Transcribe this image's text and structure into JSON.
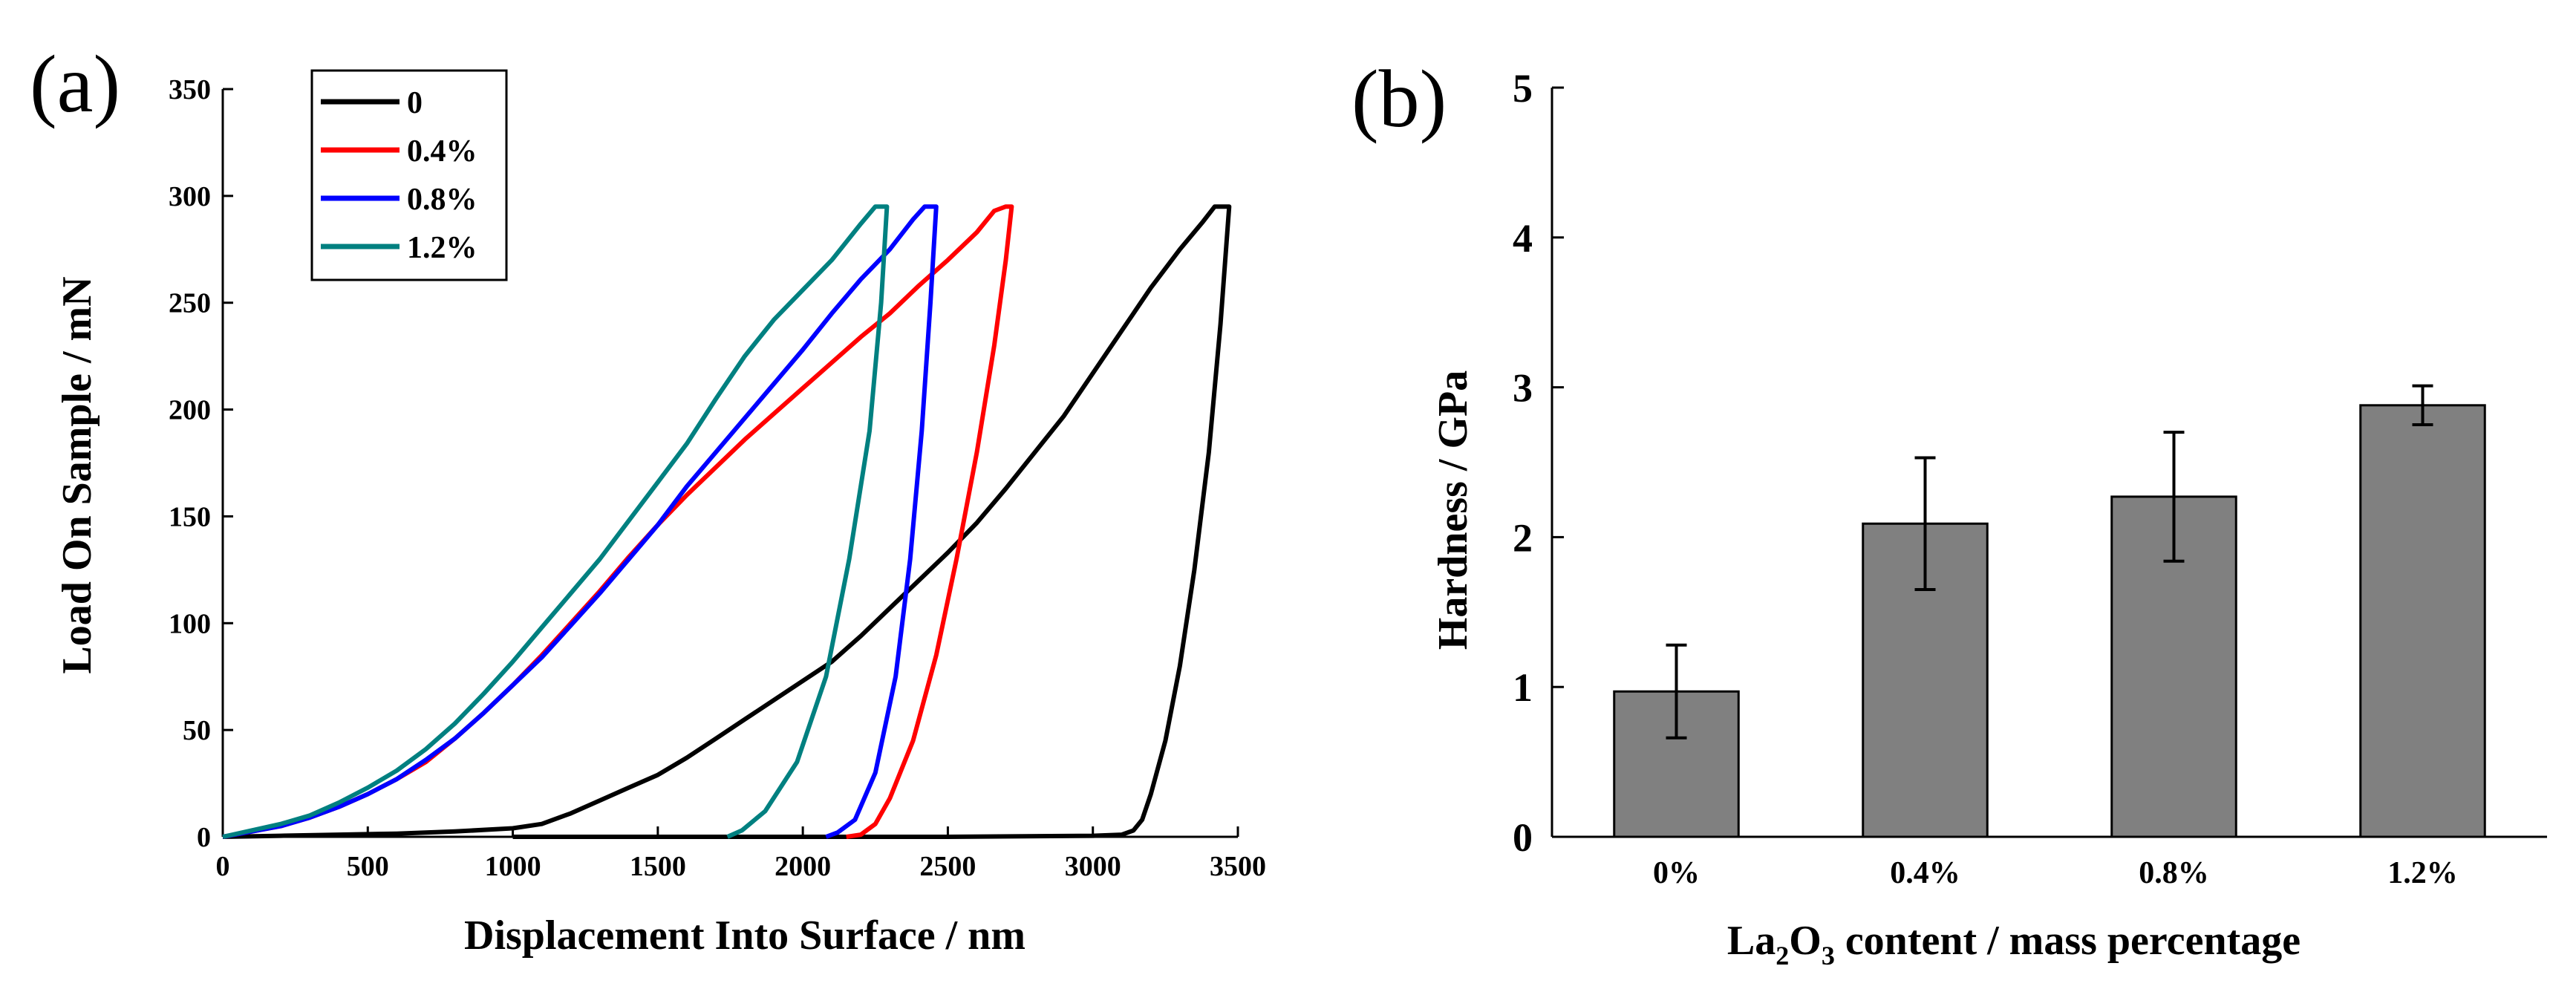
{
  "panels": {
    "a_label": "(a)",
    "b_label": "(b)"
  },
  "chart_data": [
    {
      "type": "line",
      "xlabel": "Displacement Into Surface / nm",
      "ylabel": "Load On Sample / mN",
      "xlim": [
        0,
        3500
      ],
      "ylim": [
        0,
        350
      ],
      "xticks": [
        0,
        500,
        1000,
        1500,
        2000,
        2500,
        3000,
        3500
      ],
      "yticks": [
        0,
        50,
        100,
        150,
        200,
        250,
        300,
        350
      ],
      "grid": false,
      "legend_position": "top-left",
      "series": [
        {
          "name": "0",
          "color": "#000000",
          "points": [
            [
              0,
              0
            ],
            [
              200,
              0.5
            ],
            [
              400,
              1
            ],
            [
              600,
              1.5
            ],
            [
              800,
              2.5
            ],
            [
              1000,
              4
            ],
            [
              1100,
              6
            ],
            [
              1200,
              11
            ],
            [
              1300,
              17
            ],
            [
              1400,
              23
            ],
            [
              1500,
              29
            ],
            [
              1600,
              37
            ],
            [
              1700,
              46
            ],
            [
              1800,
              55
            ],
            [
              1900,
              64
            ],
            [
              2000,
              73
            ],
            [
              2100,
              82
            ],
            [
              2200,
              94
            ],
            [
              2300,
              107
            ],
            [
              2400,
              120
            ],
            [
              2500,
              133
            ],
            [
              2600,
              147
            ],
            [
              2700,
              163
            ],
            [
              2800,
              180
            ],
            [
              2900,
              197
            ],
            [
              3000,
              217
            ],
            [
              3100,
              237
            ],
            [
              3200,
              257
            ],
            [
              3300,
              275
            ],
            [
              3380,
              288
            ],
            [
              3420,
              295
            ],
            [
              3470,
              295
            ],
            [
              3440,
              240
            ],
            [
              3400,
              180
            ],
            [
              3350,
              125
            ],
            [
              3300,
              80
            ],
            [
              3250,
              45
            ],
            [
              3200,
              20
            ],
            [
              3170,
              8
            ],
            [
              3140,
              3
            ],
            [
              3100,
              1
            ],
            [
              3000,
              0.5
            ],
            [
              2500,
              0
            ],
            [
              2000,
              0
            ],
            [
              1500,
              0
            ],
            [
              1000,
              0
            ]
          ]
        },
        {
          "name": "0.4%",
          "color": "#ff0000",
          "points": [
            [
              0,
              0
            ],
            [
              200,
              5
            ],
            [
              300,
              9
            ],
            [
              400,
              14
            ],
            [
              500,
              20
            ],
            [
              600,
              27
            ],
            [
              700,
              35
            ],
            [
              800,
              46
            ],
            [
              900,
              58
            ],
            [
              1000,
              71
            ],
            [
              1100,
              85
            ],
            [
              1200,
              100
            ],
            [
              1300,
              115
            ],
            [
              1400,
              131
            ],
            [
              1500,
              146
            ],
            [
              1600,
              160
            ],
            [
              1700,
              173
            ],
            [
              1800,
              186
            ],
            [
              1900,
              198
            ],
            [
              2000,
              210
            ],
            [
              2100,
              222
            ],
            [
              2200,
              234
            ],
            [
              2300,
              245
            ],
            [
              2400,
              258
            ],
            [
              2500,
              270
            ],
            [
              2600,
              283
            ],
            [
              2660,
              293
            ],
            [
              2700,
              295
            ],
            [
              2720,
              295
            ],
            [
              2700,
              270
            ],
            [
              2660,
              230
            ],
            [
              2600,
              180
            ],
            [
              2530,
              130
            ],
            [
              2460,
              85
            ],
            [
              2380,
              45
            ],
            [
              2300,
              18
            ],
            [
              2250,
              6
            ],
            [
              2200,
              1
            ],
            [
              2150,
              0
            ]
          ]
        },
        {
          "name": "0.8%",
          "color": "#0000ff",
          "points": [
            [
              0,
              0
            ],
            [
              200,
              5
            ],
            [
              300,
              9
            ],
            [
              400,
              14
            ],
            [
              500,
              20
            ],
            [
              600,
              27
            ],
            [
              700,
              36
            ],
            [
              800,
              46
            ],
            [
              900,
              58
            ],
            [
              1000,
              71
            ],
            [
              1100,
              84
            ],
            [
              1200,
              99
            ],
            [
              1300,
              114
            ],
            [
              1400,
              130
            ],
            [
              1500,
              146
            ],
            [
              1600,
              164
            ],
            [
              1700,
              180
            ],
            [
              1800,
              196
            ],
            [
              1900,
              212
            ],
            [
              2000,
              228
            ],
            [
              2100,
              245
            ],
            [
              2200,
              261
            ],
            [
              2300,
              275
            ],
            [
              2380,
              289
            ],
            [
              2420,
              295
            ],
            [
              2460,
              295
            ],
            [
              2440,
              250
            ],
            [
              2410,
              190
            ],
            [
              2370,
              130
            ],
            [
              2320,
              75
            ],
            [
              2250,
              30
            ],
            [
              2180,
              8
            ],
            [
              2120,
              2
            ],
            [
              2080,
              0
            ]
          ]
        },
        {
          "name": "1.2%",
          "color": "#008080",
          "points": [
            [
              0,
              0
            ],
            [
              200,
              6
            ],
            [
              300,
              10
            ],
            [
              400,
              16
            ],
            [
              500,
              23
            ],
            [
              600,
              31
            ],
            [
              700,
              41
            ],
            [
              800,
              53
            ],
            [
              900,
              67
            ],
            [
              1000,
              82
            ],
            [
              1100,
              98
            ],
            [
              1200,
              114
            ],
            [
              1300,
              130
            ],
            [
              1400,
              148
            ],
            [
              1500,
              166
            ],
            [
              1600,
              184
            ],
            [
              1700,
              205
            ],
            [
              1800,
              225
            ],
            [
              1900,
              242
            ],
            [
              2000,
              256
            ],
            [
              2100,
              270
            ],
            [
              2200,
              287
            ],
            [
              2250,
              295
            ],
            [
              2290,
              295
            ],
            [
              2270,
              250
            ],
            [
              2230,
              190
            ],
            [
              2160,
              130
            ],
            [
              2080,
              75
            ],
            [
              1980,
              35
            ],
            [
              1870,
              12
            ],
            [
              1790,
              3
            ],
            [
              1740,
              0
            ]
          ]
        }
      ]
    },
    {
      "type": "bar",
      "categories": [
        "0%",
        "0.4%",
        "0.8%",
        "1.2%"
      ],
      "values": [
        0.97,
        2.09,
        2.27,
        2.88
      ],
      "errors": [
        0.31,
        0.44,
        0.43,
        0.13
      ],
      "ylabel": "Hardness / GPa",
      "xlabel_main": "La",
      "xlabel_sub1": "2",
      "xlabel_mid": "O",
      "xlabel_sub2": "3",
      "xlabel_rest": " content / mass percentage",
      "ylim": [
        0,
        5
      ],
      "yticks": [
        0,
        1,
        2,
        3,
        4,
        5
      ],
      "bar_color": "#808080",
      "grid": false
    }
  ]
}
